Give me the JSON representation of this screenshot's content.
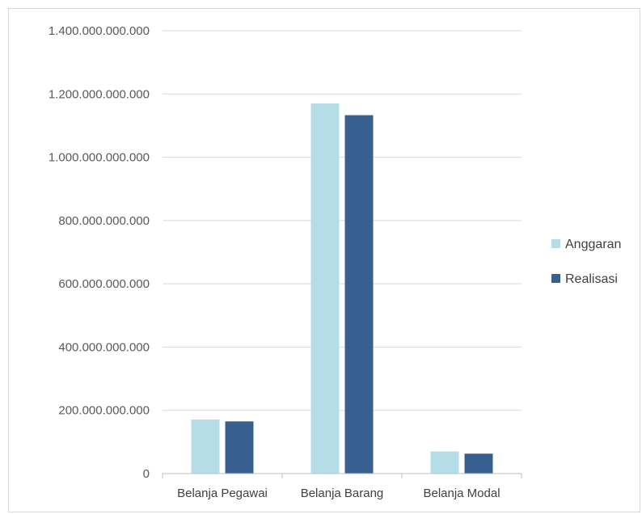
{
  "chart_data": {
    "type": "bar",
    "title": "",
    "xlabel": "",
    "ylabel": "",
    "categories": [
      "Belanja Pegawai",
      "Belanja Barang",
      "Belanja Modal"
    ],
    "series": [
      {
        "name": "Anggaran",
        "color": "#b4dde8",
        "values": [
          171000000000,
          1170000000000,
          70000000000
        ]
      },
      {
        "name": "Realisasi",
        "color": "#375f8f",
        "values": [
          165000000000,
          1133000000000,
          63000000000
        ]
      }
    ],
    "ylim": [
      0,
      1400000000000
    ],
    "yticks": [
      {
        "value": 0,
        "label": "0"
      },
      {
        "value": 200000000000,
        "label": "200.000.000.000"
      },
      {
        "value": 400000000000,
        "label": "400.000.000.000"
      },
      {
        "value": 600000000000,
        "label": "600.000.000.000"
      },
      {
        "value": 800000000000,
        "label": "800.000.000.000"
      },
      {
        "value": 1000000000000,
        "label": "1.000.000.000.000"
      },
      {
        "value": 1200000000000,
        "label": "1.200.000.000.000"
      },
      {
        "value": 1400000000000,
        "label": "1.400.000.000.000"
      }
    ],
    "grid": true,
    "legend_position": "right",
    "gridline_color": "#d9d9d9",
    "axis_color": "#bfbfbf"
  }
}
